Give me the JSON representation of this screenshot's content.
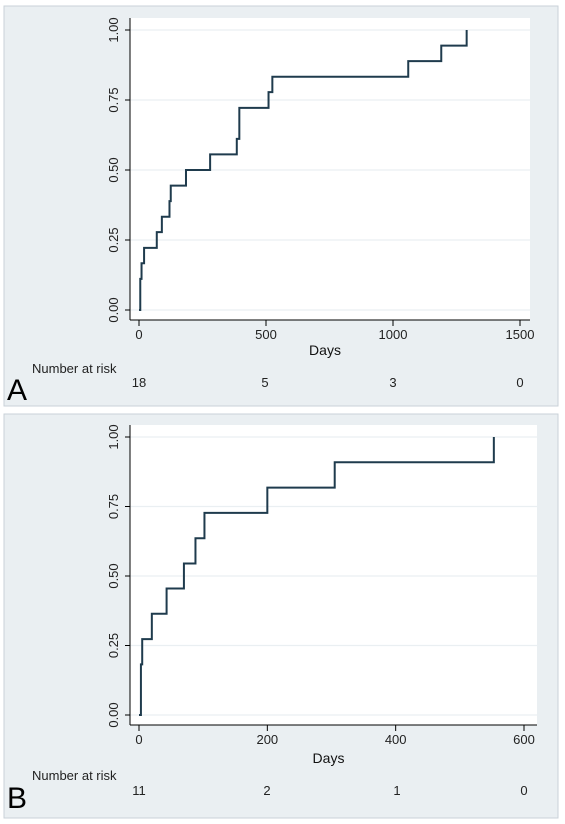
{
  "chart_data": [
    {
      "type": "line",
      "step": true,
      "panel_label": "A",
      "xlabel": "Days",
      "ylabel": "",
      "xlim": [
        0,
        1500
      ],
      "ylim": [
        0,
        1
      ],
      "x_ticks": [
        0,
        500,
        1000,
        1500
      ],
      "y_ticks": [
        "0.00",
        "0.25",
        "0.50",
        "0.75",
        "1.00"
      ],
      "grid": "horizontal",
      "line_color": "#1f3b4d",
      "series": [
        {
          "x": [
            0,
            5,
            10,
            20,
            70,
            90,
            120,
            125,
            185,
            280,
            385,
            395,
            510,
            525,
            1060,
            1190,
            1290
          ],
          "y": [
            0.0,
            0.111,
            0.167,
            0.222,
            0.278,
            0.333,
            0.389,
            0.444,
            0.5,
            0.556,
            0.611,
            0.722,
            0.778,
            0.833,
            0.889,
            0.944,
            1.0
          ]
        }
      ],
      "risk_table": {
        "title": "Number at risk",
        "values": [
          "18",
          "5",
          "3",
          "0"
        ]
      }
    },
    {
      "type": "line",
      "step": true,
      "panel_label": "B",
      "xlabel": "Days",
      "ylabel": "",
      "xlim": [
        0,
        600
      ],
      "ylim": [
        0,
        1
      ],
      "x_ticks": [
        0,
        200,
        400,
        600
      ],
      "y_ticks": [
        "0.00",
        "0.25",
        "0.50",
        "0.75",
        "1.00"
      ],
      "grid": "horizontal",
      "line_color": "#1f3b4d",
      "series": [
        {
          "x": [
            0,
            3,
            5,
            20,
            43,
            70,
            88,
            102,
            200,
            305,
            553
          ],
          "y": [
            0.0,
            0.182,
            0.273,
            0.364,
            0.455,
            0.545,
            0.636,
            0.727,
            0.818,
            0.909,
            1.0
          ]
        }
      ],
      "risk_table": {
        "title": "Number at risk",
        "values": [
          "11",
          "2",
          "1",
          "0"
        ]
      }
    }
  ]
}
